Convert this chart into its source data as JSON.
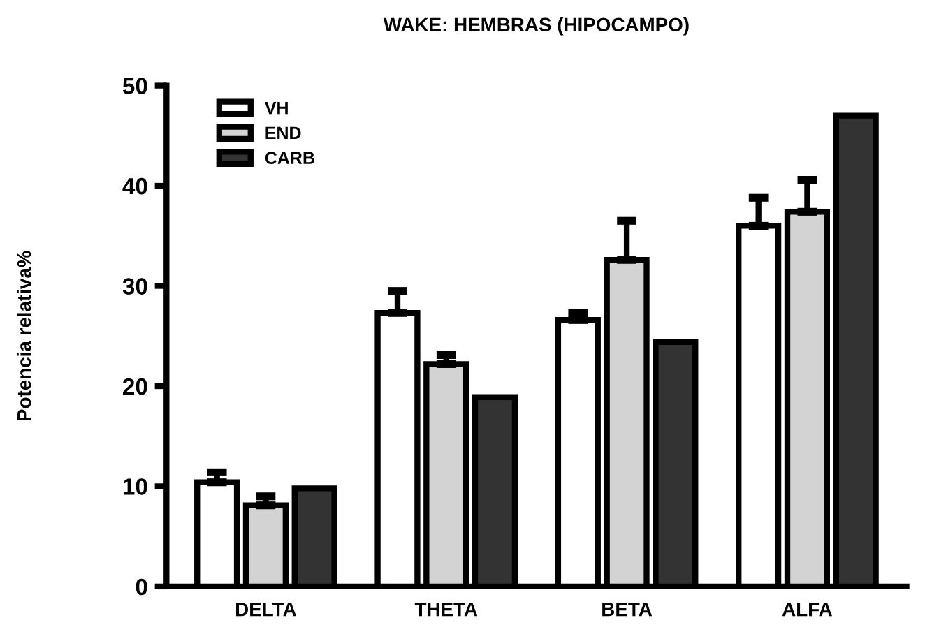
{
  "chart_data": {
    "type": "bar",
    "title": "WAKE: HEMBRAS (HIPOCAMPO)",
    "ylabel": "Potencia relativa%",
    "categories": [
      "DELTA",
      "THETA",
      "BETA",
      "ALFA"
    ],
    "series": [
      {
        "name": "VH",
        "color": "#ffffff",
        "values": [
          10.4,
          27.3,
          26.6,
          36.0
        ],
        "errors": [
          [
            10.4,
            11.4
          ],
          [
            27.3,
            29.5
          ],
          [
            26.6,
            27.3
          ],
          [
            36.0,
            38.8
          ]
        ]
      },
      {
        "name": "END",
        "color": "#d3d3d3",
        "values": [
          8.1,
          22.2,
          32.6,
          37.4
        ],
        "errors": [
          [
            8.1,
            9.0
          ],
          [
            22.2,
            23.1
          ],
          [
            32.6,
            36.5
          ],
          [
            37.4,
            40.6
          ]
        ]
      },
      {
        "name": "CARB",
        "color": "#333333",
        "values": [
          9.8,
          18.9,
          24.4,
          47.0
        ]
      }
    ],
    "ylim": [
      0,
      50
    ],
    "yticks": [
      0,
      10,
      20,
      30,
      40,
      50
    ],
    "grid": false,
    "legend": "top left"
  }
}
